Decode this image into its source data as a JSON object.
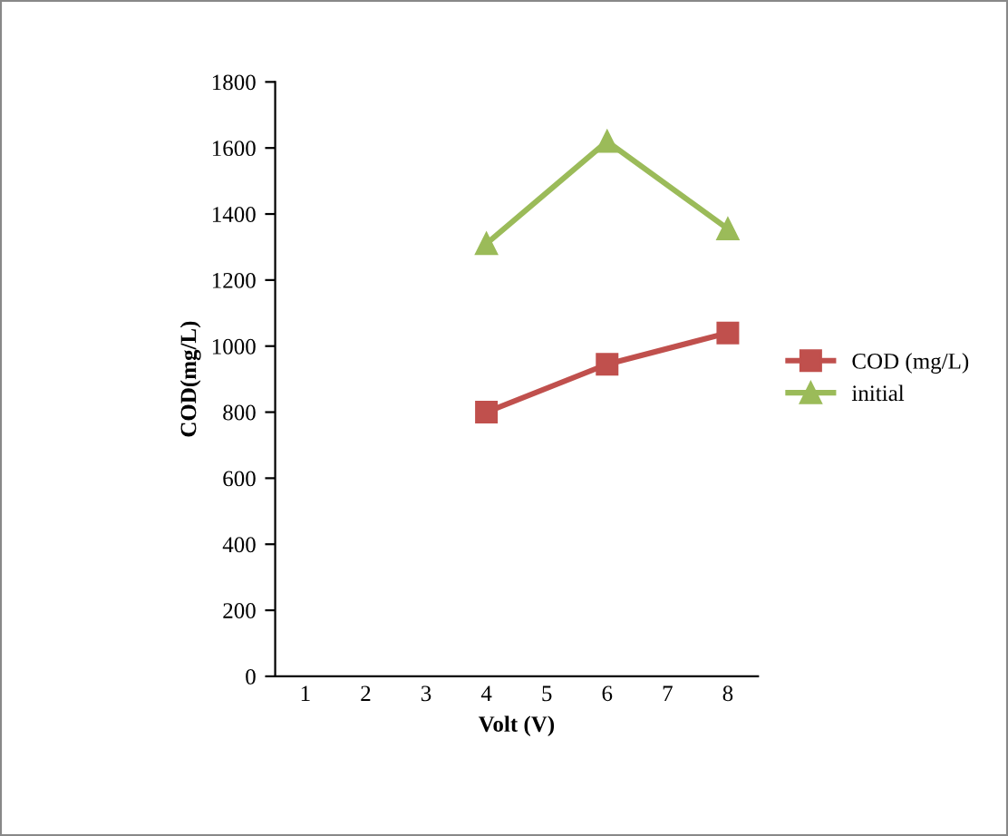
{
  "chart_data": {
    "type": "line",
    "xlabel": "Volt (V)",
    "ylabel": "COD(mg/L)",
    "xlim": [
      0.5,
      8.5
    ],
    "xticks": [
      1,
      2,
      3,
      4,
      5,
      6,
      7,
      8
    ],
    "ylim": [
      0,
      1800
    ],
    "yticks": [
      0,
      200,
      400,
      600,
      800,
      1000,
      1200,
      1400,
      1600,
      1800
    ],
    "grid": false,
    "legend": "right",
    "series": [
      {
        "name": "COD (mg/L)",
        "color": "#c0504d",
        "marker": "square",
        "x": [
          4,
          6,
          8
        ],
        "values": [
          800,
          945,
          1040
        ]
      },
      {
        "name": "initial",
        "color": "#9bbb59",
        "marker": "triangle",
        "x": [
          4,
          6,
          8
        ],
        "values": [
          1310,
          1620,
          1355
        ]
      }
    ]
  }
}
